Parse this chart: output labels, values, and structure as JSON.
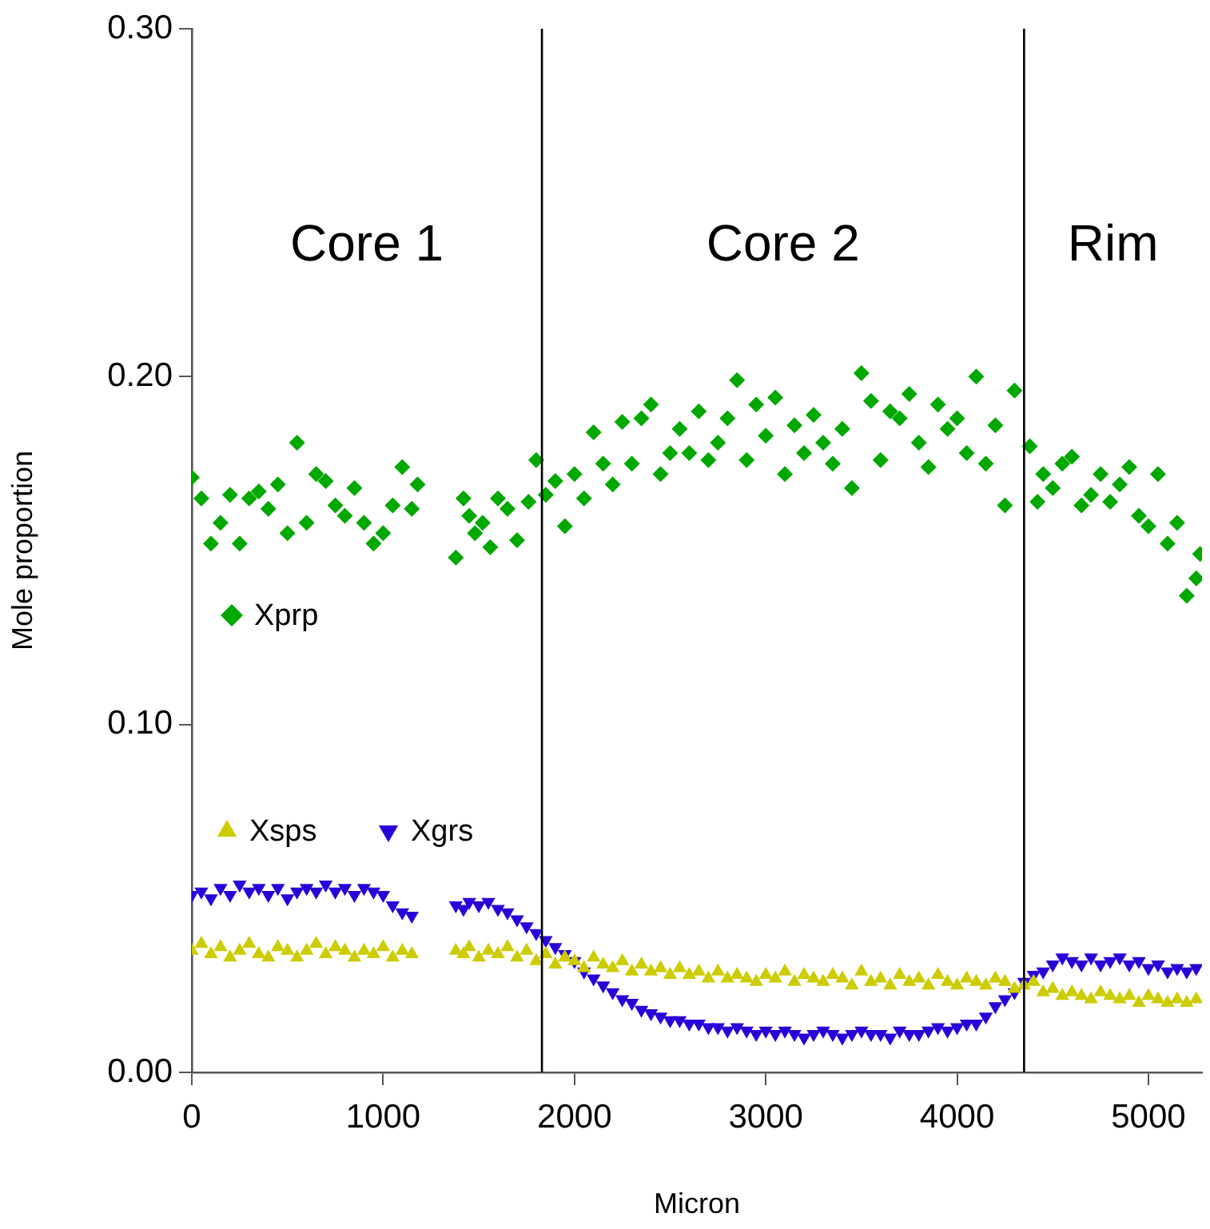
{
  "chart_data": {
    "type": "scatter",
    "xlabel": "Micron",
    "ylabel": "Mole proportion",
    "xlim": [
      0,
      5280
    ],
    "xticks": [
      0,
      1000,
      2000,
      3000,
      4000,
      5000
    ],
    "ylim": [
      0,
      0.3
    ],
    "yticks": [
      {
        "value": 0,
        "label": "0.00"
      },
      {
        "value": 0.1,
        "label": "0.10"
      },
      {
        "value": 0.2,
        "label": "0.20"
      },
      {
        "value": 0.3,
        "label": "0.30"
      }
    ],
    "grid": false,
    "legend": "left",
    "ref_lines": [
      {
        "axis": "x",
        "value": 1830,
        "color": "#000000"
      },
      {
        "axis": "x",
        "value": 4350,
        "color": "#000000"
      }
    ],
    "annotations": [
      "Core 1",
      "Core 2",
      "Rim"
    ],
    "series": [
      {
        "name": "Xprp",
        "color": "#00a800",
        "marker": "diamond",
        "x": [
          0,
          50,
          100,
          150,
          200,
          250,
          300,
          350,
          400,
          450,
          500,
          550,
          600,
          650,
          700,
          750,
          800,
          850,
          900,
          950,
          1000,
          1050,
          1100,
          1150,
          1180,
          1380,
          1420,
          1450,
          1480,
          1520,
          1560,
          1600,
          1650,
          1700,
          1760,
          1800,
          1850,
          1900,
          1950,
          2000,
          2050,
          2100,
          2150,
          2200,
          2250,
          2300,
          2350,
          2400,
          2450,
          2500,
          2550,
          2600,
          2650,
          2700,
          2750,
          2800,
          2850,
          2900,
          2950,
          3000,
          3050,
          3100,
          3150,
          3200,
          3250,
          3300,
          3350,
          3400,
          3450,
          3500,
          3550,
          3600,
          3650,
          3700,
          3750,
          3800,
          3850,
          3900,
          3950,
          4000,
          4050,
          4100,
          4150,
          4200,
          4250,
          4300,
          4380,
          4420,
          4450,
          4500,
          4550,
          4600,
          4650,
          4700,
          4750,
          4800,
          4850,
          4900,
          4950,
          5000,
          5050,
          5100,
          5150,
          5200,
          5250,
          5270
        ],
        "values": [
          0.171,
          0.165,
          0.152,
          0.158,
          0.166,
          0.152,
          0.165,
          0.167,
          0.162,
          0.169,
          0.155,
          0.181,
          0.158,
          0.172,
          0.17,
          0.163,
          0.16,
          0.168,
          0.158,
          0.152,
          0.155,
          0.163,
          0.174,
          0.162,
          0.169,
          0.148,
          0.165,
          0.16,
          0.155,
          0.158,
          0.151,
          0.165,
          0.162,
          0.153,
          0.164,
          0.176,
          0.166,
          0.17,
          0.157,
          0.172,
          0.165,
          0.184,
          0.175,
          0.169,
          0.187,
          0.175,
          0.188,
          0.192,
          0.172,
          0.178,
          0.185,
          0.178,
          0.19,
          0.176,
          0.181,
          0.188,
          0.199,
          0.176,
          0.192,
          0.183,
          0.194,
          0.172,
          0.186,
          0.178,
          0.189,
          0.181,
          0.175,
          0.185,
          0.168,
          0.201,
          0.193,
          0.176,
          0.19,
          0.188,
          0.195,
          0.181,
          0.174,
          0.192,
          0.185,
          0.188,
          0.178,
          0.2,
          0.175,
          0.186,
          0.163,
          0.196,
          0.18,
          0.164,
          0.172,
          0.168,
          0.175,
          0.177,
          0.163,
          0.166,
          0.172,
          0.164,
          0.169,
          0.174,
          0.16,
          0.157,
          0.172,
          0.152,
          0.158,
          0.137,
          0.142,
          0.149
        ]
      },
      {
        "name": "Xsps",
        "color": "#cccc00",
        "marker": "triangle",
        "x": [
          0,
          50,
          100,
          150,
          200,
          250,
          300,
          350,
          400,
          450,
          500,
          550,
          600,
          650,
          700,
          750,
          800,
          850,
          900,
          950,
          1000,
          1050,
          1100,
          1150,
          1380,
          1420,
          1450,
          1500,
          1550,
          1600,
          1650,
          1700,
          1750,
          1800,
          1850,
          1900,
          1950,
          2000,
          2050,
          2100,
          2150,
          2200,
          2250,
          2300,
          2350,
          2400,
          2450,
          2500,
          2550,
          2600,
          2650,
          2700,
          2750,
          2800,
          2850,
          2900,
          2950,
          3000,
          3050,
          3100,
          3150,
          3200,
          3250,
          3300,
          3350,
          3400,
          3450,
          3500,
          3550,
          3600,
          3650,
          3700,
          3750,
          3800,
          3850,
          3900,
          3950,
          4000,
          4050,
          4100,
          4150,
          4200,
          4250,
          4300,
          4350,
          4400,
          4450,
          4500,
          4550,
          4600,
          4650,
          4700,
          4750,
          4800,
          4850,
          4900,
          4950,
          5000,
          5050,
          5100,
          5150,
          5200,
          5250
        ],
        "values": [
          0.035,
          0.037,
          0.034,
          0.036,
          0.033,
          0.035,
          0.037,
          0.034,
          0.033,
          0.036,
          0.035,
          0.033,
          0.035,
          0.037,
          0.034,
          0.036,
          0.035,
          0.033,
          0.035,
          0.034,
          0.036,
          0.033,
          0.035,
          0.034,
          0.035,
          0.034,
          0.036,
          0.033,
          0.035,
          0.034,
          0.036,
          0.033,
          0.035,
          0.032,
          0.034,
          0.031,
          0.033,
          0.032,
          0.03,
          0.033,
          0.031,
          0.03,
          0.032,
          0.029,
          0.031,
          0.029,
          0.03,
          0.028,
          0.03,
          0.028,
          0.029,
          0.027,
          0.029,
          0.027,
          0.028,
          0.027,
          0.026,
          0.028,
          0.027,
          0.029,
          0.026,
          0.028,
          0.027,
          0.026,
          0.028,
          0.027,
          0.025,
          0.029,
          0.026,
          0.027,
          0.025,
          0.028,
          0.026,
          0.027,
          0.025,
          0.028,
          0.026,
          0.025,
          0.027,
          0.026,
          0.025,
          0.027,
          0.026,
          0.024,
          0.025,
          0.026,
          0.023,
          0.024,
          0.022,
          0.023,
          0.022,
          0.021,
          0.023,
          0.022,
          0.021,
          0.022,
          0.02,
          0.022,
          0.021,
          0.02,
          0.021,
          0.02,
          0.021
        ]
      },
      {
        "name": "Xgrs",
        "color": "#2a00d8",
        "marker": "triangle_down",
        "x": [
          0,
          50,
          100,
          150,
          200,
          250,
          300,
          350,
          400,
          450,
          500,
          550,
          600,
          650,
          700,
          750,
          800,
          850,
          900,
          950,
          1000,
          1050,
          1100,
          1150,
          1380,
          1420,
          1450,
          1500,
          1550,
          1600,
          1650,
          1700,
          1750,
          1800,
          1850,
          1900,
          1950,
          2000,
          2050,
          2100,
          2150,
          2200,
          2250,
          2300,
          2350,
          2400,
          2450,
          2500,
          2550,
          2600,
          2650,
          2700,
          2750,
          2800,
          2850,
          2900,
          2950,
          3000,
          3050,
          3100,
          3150,
          3200,
          3250,
          3300,
          3350,
          3400,
          3450,
          3500,
          3550,
          3600,
          3650,
          3700,
          3750,
          3800,
          3850,
          3900,
          3950,
          4000,
          4050,
          4100,
          4150,
          4200,
          4250,
          4300,
          4350,
          4400,
          4450,
          4500,
          4550,
          4600,
          4650,
          4700,
          4750,
          4800,
          4850,
          4900,
          4950,
          5000,
          5050,
          5100,
          5150,
          5200,
          5250
        ],
        "values": [
          0.051,
          0.052,
          0.05,
          0.053,
          0.051,
          0.054,
          0.052,
          0.053,
          0.051,
          0.053,
          0.05,
          0.052,
          0.053,
          0.052,
          0.054,
          0.052,
          0.053,
          0.051,
          0.053,
          0.052,
          0.051,
          0.048,
          0.046,
          0.045,
          0.048,
          0.047,
          0.049,
          0.048,
          0.049,
          0.047,
          0.046,
          0.044,
          0.042,
          0.04,
          0.038,
          0.036,
          0.034,
          0.032,
          0.029,
          0.027,
          0.025,
          0.023,
          0.021,
          0.02,
          0.018,
          0.017,
          0.016,
          0.015,
          0.015,
          0.014,
          0.014,
          0.013,
          0.013,
          0.012,
          0.013,
          0.012,
          0.011,
          0.012,
          0.011,
          0.012,
          0.011,
          0.01,
          0.011,
          0.012,
          0.011,
          0.01,
          0.011,
          0.012,
          0.011,
          0.011,
          0.01,
          0.012,
          0.011,
          0.011,
          0.012,
          0.013,
          0.012,
          0.013,
          0.014,
          0.014,
          0.016,
          0.019,
          0.021,
          0.023,
          0.026,
          0.028,
          0.029,
          0.031,
          0.033,
          0.032,
          0.031,
          0.033,
          0.031,
          0.032,
          0.033,
          0.031,
          0.032,
          0.03,
          0.031,
          0.029,
          0.03,
          0.029,
          0.03
        ]
      }
    ]
  }
}
